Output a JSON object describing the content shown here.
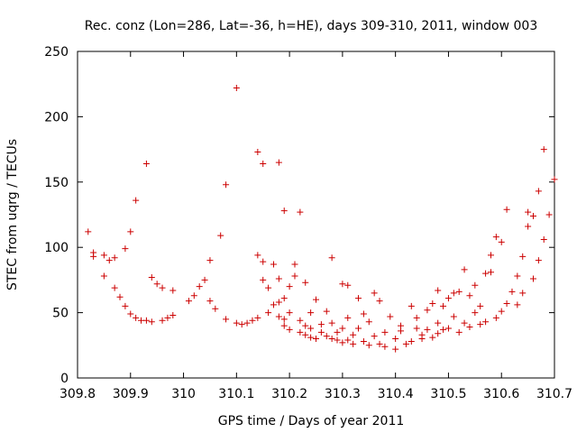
{
  "chart_data": {
    "type": "scatter",
    "title": "Rec. conz (Lon=286, Lat=-36, h=HE), days 309-310, 2011, window 003",
    "xlabel": "GPS time / Days of year 2011",
    "ylabel": "STEC from uqrg / TECUs",
    "xlim": [
      309.8,
      310.7
    ],
    "ylim": [
      0,
      250
    ],
    "xticks": [
      "309.8",
      "309.9",
      "310",
      "310.1",
      "310.2",
      "310.3",
      "310.4",
      "310.5",
      "310.6",
      "310.7"
    ],
    "yticks": [
      "0",
      "50",
      "100",
      "150",
      "200",
      "250"
    ],
    "marker": "+",
    "color": "#cc0000",
    "series": [
      {
        "name": "STEC",
        "points": [
          [
            309.82,
            112
          ],
          [
            309.83,
            96
          ],
          [
            309.83,
            93
          ],
          [
            309.85,
            94
          ],
          [
            309.85,
            78
          ],
          [
            309.86,
            90
          ],
          [
            309.87,
            69
          ],
          [
            309.87,
            92
          ],
          [
            309.88,
            62
          ],
          [
            309.89,
            55
          ],
          [
            309.89,
            99
          ],
          [
            309.9,
            49
          ],
          [
            309.9,
            112
          ],
          [
            309.91,
            136
          ],
          [
            309.91,
            46
          ],
          [
            309.92,
            44
          ],
          [
            309.93,
            164
          ],
          [
            309.93,
            44
          ],
          [
            309.94,
            77
          ],
          [
            309.94,
            43
          ],
          [
            309.95,
            72
          ],
          [
            309.96,
            69
          ],
          [
            309.96,
            44
          ],
          [
            309.97,
            46
          ],
          [
            309.98,
            67
          ],
          [
            309.98,
            48
          ],
          [
            310.01,
            59
          ],
          [
            310.02,
            63
          ],
          [
            310.03,
            70
          ],
          [
            310.04,
            75
          ],
          [
            310.05,
            59
          ],
          [
            310.05,
            90
          ],
          [
            310.06,
            53
          ],
          [
            310.07,
            109
          ],
          [
            310.08,
            148
          ],
          [
            310.08,
            45
          ],
          [
            310.1,
            222
          ],
          [
            310.1,
            42
          ],
          [
            310.11,
            41
          ],
          [
            310.12,
            42
          ],
          [
            310.13,
            44
          ],
          [
            310.14,
            173
          ],
          [
            310.14,
            94
          ],
          [
            310.14,
            46
          ],
          [
            310.15,
            164
          ],
          [
            310.15,
            75
          ],
          [
            310.15,
            89
          ],
          [
            310.16,
            50
          ],
          [
            310.16,
            69
          ],
          [
            310.17,
            56
          ],
          [
            310.17,
            87
          ],
          [
            310.18,
            165
          ],
          [
            310.18,
            58
          ],
          [
            310.18,
            47
          ],
          [
            310.18,
            76
          ],
          [
            310.19,
            128
          ],
          [
            310.19,
            61
          ],
          [
            310.19,
            45
          ],
          [
            310.19,
            40
          ],
          [
            310.2,
            70
          ],
          [
            310.2,
            37
          ],
          [
            310.2,
            50
          ],
          [
            310.21,
            87
          ],
          [
            310.21,
            78
          ],
          [
            310.22,
            127
          ],
          [
            310.22,
            44
          ],
          [
            310.22,
            35
          ],
          [
            310.23,
            40
          ],
          [
            310.23,
            33
          ],
          [
            310.23,
            73
          ],
          [
            310.24,
            50
          ],
          [
            310.24,
            31
          ],
          [
            310.24,
            38
          ],
          [
            310.25,
            60
          ],
          [
            310.25,
            30
          ],
          [
            310.26,
            35
          ],
          [
            310.26,
            41
          ],
          [
            310.27,
            51
          ],
          [
            310.27,
            32
          ],
          [
            310.28,
            92
          ],
          [
            310.28,
            30
          ],
          [
            310.28,
            42
          ],
          [
            310.29,
            29
          ],
          [
            310.29,
            35
          ],
          [
            310.3,
            27
          ],
          [
            310.3,
            72
          ],
          [
            310.3,
            38
          ],
          [
            310.31,
            71
          ],
          [
            310.31,
            46
          ],
          [
            310.31,
            29
          ],
          [
            310.32,
            33
          ],
          [
            310.32,
            26
          ],
          [
            310.33,
            61
          ],
          [
            310.33,
            38
          ],
          [
            310.34,
            49
          ],
          [
            310.34,
            28
          ],
          [
            310.35,
            25
          ],
          [
            310.35,
            43
          ],
          [
            310.36,
            65
          ],
          [
            310.36,
            32
          ],
          [
            310.37,
            26
          ],
          [
            310.37,
            59
          ],
          [
            310.38,
            35
          ],
          [
            310.38,
            24
          ],
          [
            310.39,
            47
          ],
          [
            310.4,
            30
          ],
          [
            310.4,
            22
          ],
          [
            310.41,
            40
          ],
          [
            310.41,
            36
          ],
          [
            310.42,
            26
          ],
          [
            310.43,
            55
          ],
          [
            310.43,
            28
          ],
          [
            310.44,
            38
          ],
          [
            310.44,
            46
          ],
          [
            310.45,
            30
          ],
          [
            310.45,
            33
          ],
          [
            310.46,
            52
          ],
          [
            310.46,
            37
          ],
          [
            310.47,
            31
          ],
          [
            310.47,
            57
          ],
          [
            310.48,
            67
          ],
          [
            310.48,
            34
          ],
          [
            310.48,
            42
          ],
          [
            310.49,
            55
          ],
          [
            310.49,
            37
          ],
          [
            310.5,
            61
          ],
          [
            310.5,
            38
          ],
          [
            310.51,
            65
          ],
          [
            310.51,
            47
          ],
          [
            310.52,
            35
          ],
          [
            310.52,
            66
          ],
          [
            310.53,
            83
          ],
          [
            310.53,
            42
          ],
          [
            310.54,
            39
          ],
          [
            310.54,
            63
          ],
          [
            310.55,
            71
          ],
          [
            310.55,
            50
          ],
          [
            310.56,
            55
          ],
          [
            310.56,
            41
          ],
          [
            310.57,
            80
          ],
          [
            310.57,
            43
          ],
          [
            310.58,
            81
          ],
          [
            310.58,
            94
          ],
          [
            310.59,
            46
          ],
          [
            310.59,
            108
          ],
          [
            310.6,
            104
          ],
          [
            310.6,
            51
          ],
          [
            310.61,
            129
          ],
          [
            310.61,
            57
          ],
          [
            310.62,
            66
          ],
          [
            310.63,
            78
          ],
          [
            310.63,
            56
          ],
          [
            310.64,
            93
          ],
          [
            310.64,
            65
          ],
          [
            310.65,
            127
          ],
          [
            310.65,
            116
          ],
          [
            310.66,
            124
          ],
          [
            310.66,
            76
          ],
          [
            310.67,
            143
          ],
          [
            310.67,
            90
          ],
          [
            310.68,
            175
          ],
          [
            310.68,
            106
          ],
          [
            310.69,
            125
          ],
          [
            310.7,
            152
          ]
        ]
      }
    ]
  }
}
